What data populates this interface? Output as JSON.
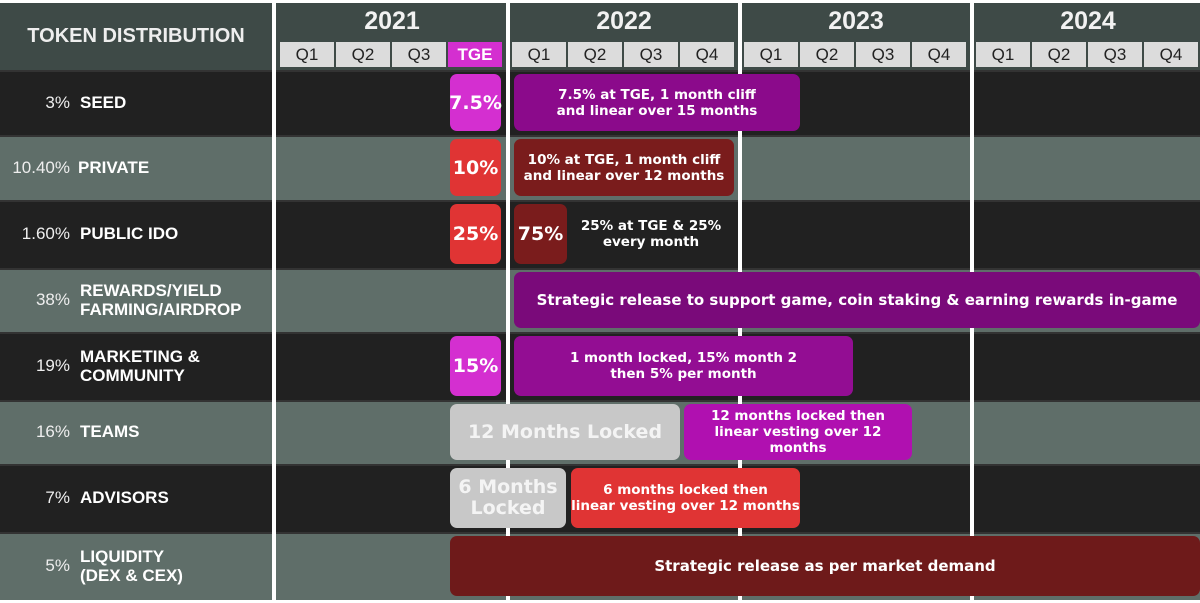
{
  "header": {
    "title": "TOKEN DISTRIBUTION",
    "years": [
      {
        "label": "2021",
        "quarters": [
          "Q1",
          "Q2",
          "Q3",
          "TGE"
        ]
      },
      {
        "label": "2022",
        "quarters": [
          "Q1",
          "Q2",
          "Q3",
          "Q4"
        ]
      },
      {
        "label": "2023",
        "quarters": [
          "Q1",
          "Q2",
          "Q3",
          "Q4"
        ]
      },
      {
        "label": "2024",
        "quarters": [
          "Q1",
          "Q2",
          "Q3",
          "Q4"
        ]
      }
    ]
  },
  "colors": {
    "magenta": "#d42fd0",
    "purple": "#8b0a8b",
    "red": "#e03434",
    "dark_red": "#7a1c1c",
    "locked_gray": "#c8c8c8",
    "row_dark": "#212121",
    "row_gray": "#5f6e69",
    "header": "#3e4a47"
  },
  "rows": [
    {
      "pct": "3%",
      "name": "SEED",
      "bars": [
        {
          "text": "7.5%",
          "color": "#d42fd0"
        },
        {
          "text": "7.5% at TGE, 1 month cliff\nand linear over 15 months",
          "color": "#8b0a8b"
        }
      ]
    },
    {
      "pct": "10.40%",
      "name": "PRIVATE",
      "bars": [
        {
          "text": "10%",
          "color": "#e03434"
        },
        {
          "text": "10% at TGE, 1 month cliff\nand linear over 12 months",
          "color": "#7a1c1c"
        }
      ]
    },
    {
      "pct": "1.60%",
      "name": "PUBLIC IDO",
      "bars": [
        {
          "text": "25%",
          "color": "#e03434"
        },
        {
          "text": "75%",
          "color": "#7a1c1c"
        },
        {
          "text": "25% at TGE & 25%\nevery month",
          "color": ""
        }
      ]
    },
    {
      "pct": "38%",
      "name": "REWARDS/YIELD\nFARMING/AIRDROP",
      "bars": [
        {
          "text": "Strategic release to support game, coin staking & earning rewards in-game",
          "color": "#7a0a7a"
        }
      ]
    },
    {
      "pct": "19%",
      "name": "MARKETING &\nCOMMUNITY",
      "bars": [
        {
          "text": "15%",
          "color": "#d42fd0"
        },
        {
          "text": "1 month locked,  15% month 2\nthen 5% per month",
          "color": "#930d93"
        }
      ]
    },
    {
      "pct": "16%",
      "name": "TEAMS",
      "bars": [
        {
          "text": "12 Months Locked",
          "color": "#c8c8c8"
        },
        {
          "text": "12 months locked then\nlinear vesting over 12 months",
          "color": "#b010b0"
        }
      ]
    },
    {
      "pct": "7%",
      "name": "ADVISORS",
      "bars": [
        {
          "text": "6 Months\nLocked",
          "color": "#c8c8c8"
        },
        {
          "text": "6 months locked then\nlinear vesting over 12 months",
          "color": "#e03434"
        }
      ]
    },
    {
      "pct": "5%",
      "name": "LIQUIDITY\n(DEX & CEX)",
      "bars": [
        {
          "text": "Strategic release as per market demand",
          "color": "#6e1a1a"
        }
      ]
    }
  ]
}
